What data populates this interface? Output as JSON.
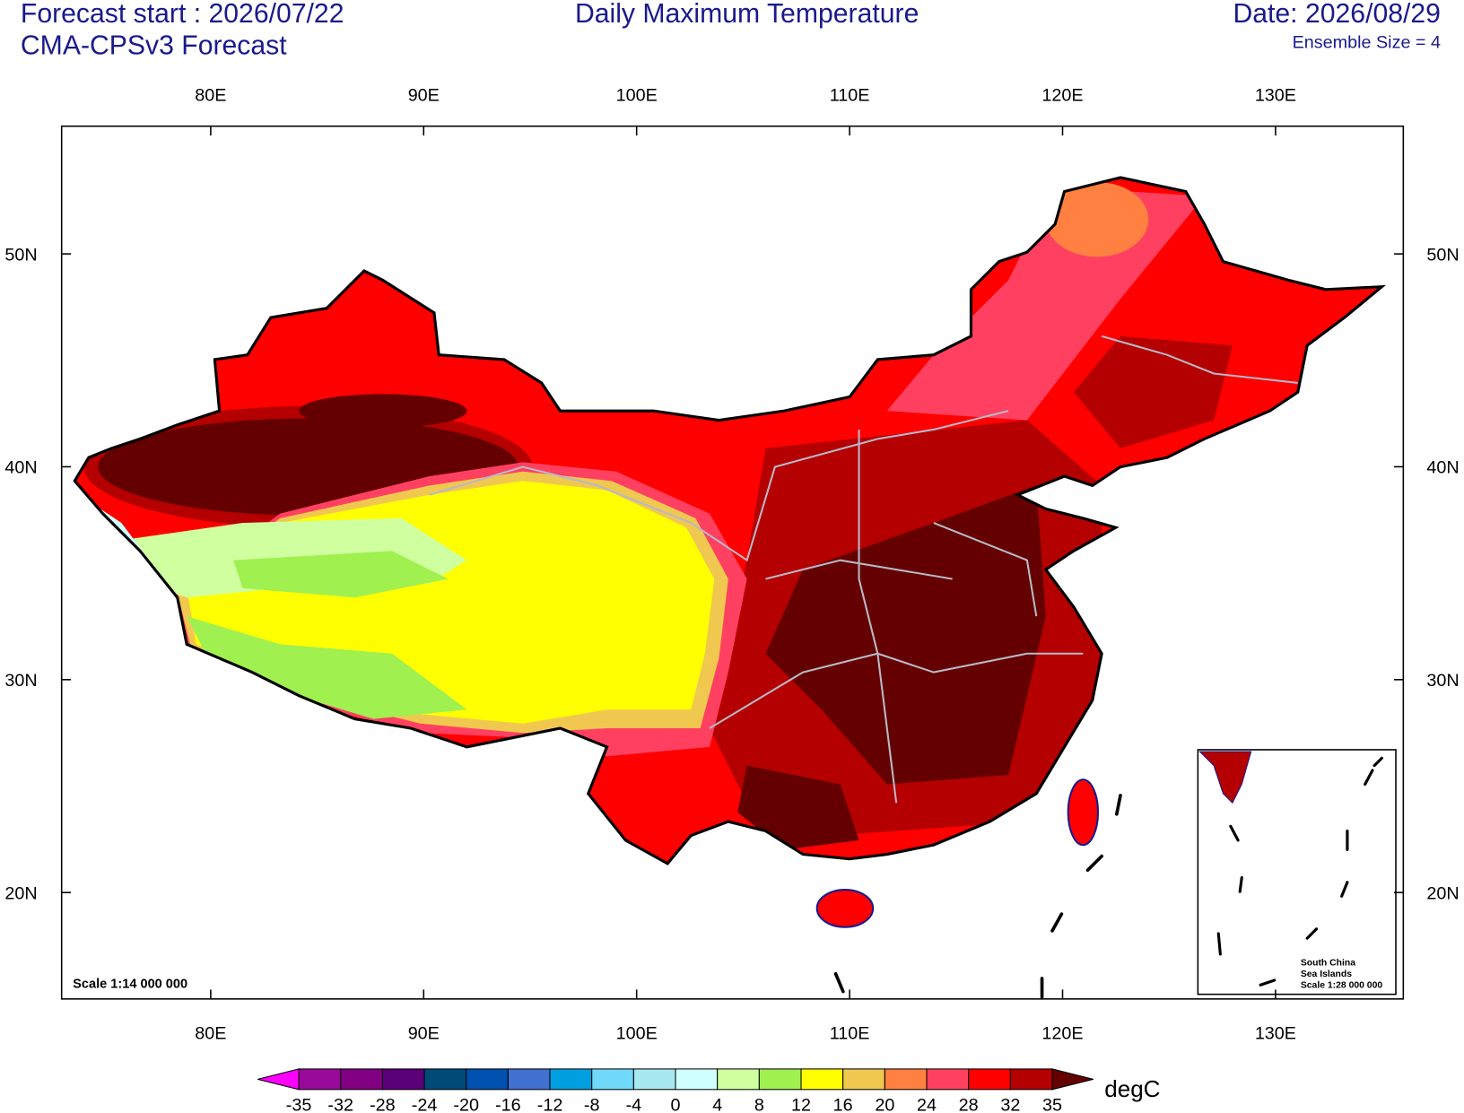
{
  "header": {
    "forecast_start": "Forecast start : 2026/07/22",
    "model": "CMA-CPSv3 Forecast",
    "title": "Daily Maximum Temperature",
    "date": "Date: 2026/08/29",
    "ensemble": "Ensemble Size = 4"
  },
  "map": {
    "xlim": [
      73,
      136
    ],
    "ylim": [
      15,
      56
    ],
    "xticks": [
      {
        "value": 80,
        "label": "80E"
      },
      {
        "value": 90,
        "label": "90E"
      },
      {
        "value": 100,
        "label": "100E"
      },
      {
        "value": 110,
        "label": "110E"
      },
      {
        "value": 120,
        "label": "120E"
      },
      {
        "value": 130,
        "label": "130E"
      }
    ],
    "yticks": [
      {
        "value": 20,
        "label": "20N"
      },
      {
        "value": 30,
        "label": "30N"
      },
      {
        "value": 40,
        "label": "40N"
      },
      {
        "value": 50,
        "label": "50N"
      }
    ],
    "scale": "Scale 1:14 000 000",
    "inset": {
      "line1": "South China",
      "line2": "Sea Islands",
      "scale": "Scale 1:28 000 000"
    }
  },
  "colorbar": {
    "levels": [
      -35,
      -32,
      -28,
      -24,
      -20,
      -16,
      -12,
      -8,
      -4,
      0,
      4,
      8,
      12,
      16,
      20,
      24,
      28,
      32,
      35
    ],
    "colors": [
      "#ff00ff",
      "#9a0a9a",
      "#820082",
      "#5a0078",
      "#004a78",
      "#0050b0",
      "#4070d0",
      "#00a0e0",
      "#70d8f8",
      "#a8e8f0",
      "#d0ffff",
      "#d0ffa0",
      "#a0f050",
      "#ffff00",
      "#f0c850",
      "#ff8040",
      "#ff4060",
      "#ff0000",
      "#b40000",
      "#640000"
    ],
    "unit": "degC"
  }
}
